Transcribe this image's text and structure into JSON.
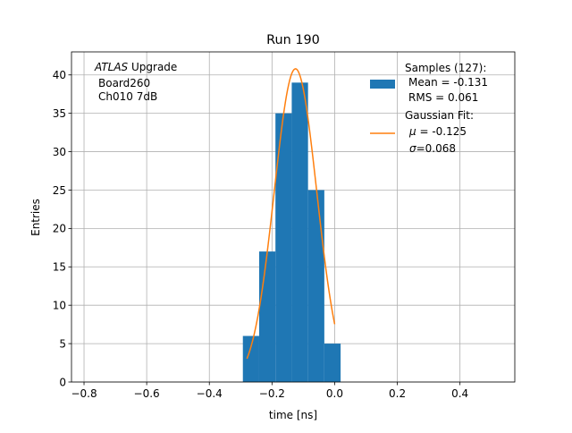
{
  "chart_data": {
    "type": "bar",
    "title": "Run 190",
    "xlabel": "time [ns]",
    "ylabel": "Entries",
    "xlim": [
      -0.84,
      0.575
    ],
    "ylim": [
      0,
      43
    ],
    "grid": true,
    "xticks": [
      -0.8,
      -0.6,
      -0.4,
      -0.2,
      0.0,
      0.2,
      0.4
    ],
    "xtick_labels": [
      "−0.8",
      "−0.6",
      "−0.4",
      "−0.2",
      "0.0",
      "0.2",
      "0.4"
    ],
    "yticks": [
      0,
      5,
      10,
      15,
      20,
      25,
      30,
      35,
      40
    ],
    "ytick_labels": [
      "0",
      "5",
      "10",
      "15",
      "20",
      "25",
      "30",
      "35",
      "40"
    ],
    "histogram": {
      "name": "Samples (127):",
      "color": "#1f77b4",
      "bin_edges": [
        -0.293,
        -0.241,
        -0.189,
        -0.137,
        -0.085,
        -0.033,
        0.019
      ],
      "bin_width": 0.052,
      "values": [
        6,
        17,
        35,
        39,
        25,
        5
      ]
    },
    "fit": {
      "name": "Gaussian Fit:",
      "color": "#ff7f0e",
      "mu": -0.125,
      "sigma": 0.068,
      "amplitude": 40.8,
      "x_range": [
        -0.28,
        0.0
      ]
    },
    "annotation": {
      "italic": "ATLAS",
      "rest": " Upgrade",
      "line2": "Board260",
      "line3": "Ch010 7dB"
    },
    "legend": {
      "position": "top-right",
      "samples_title": "Samples (127):",
      "samples_mean": "Mean = -0.131",
      "samples_rms": "RMS = 0.061",
      "fit_title": "Gaussian Fit:",
      "fit_mu": "-0.125",
      "fit_sigma": "=0.068"
    }
  }
}
